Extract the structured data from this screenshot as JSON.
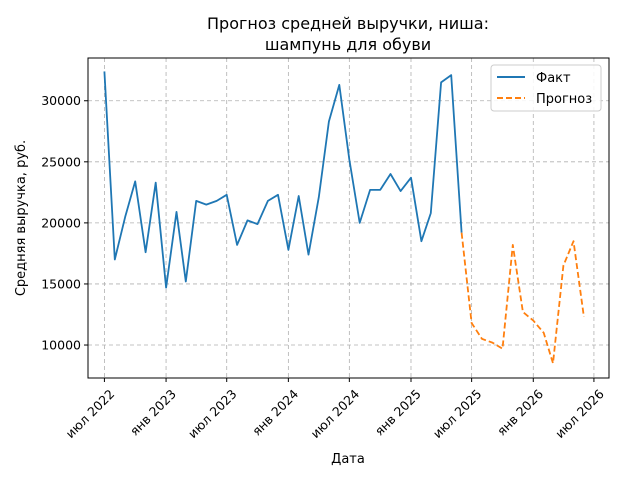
{
  "chart_data": {
    "type": "line",
    "title": [
      "Прогноз средней выручки, ниша:",
      "шампунь для обуви"
    ],
    "xlabel": "Дата",
    "ylabel": "Средняя выручка, руб.",
    "x_ticks": [
      {
        "date": "2022-07-01",
        "label": "июл 2022"
      },
      {
        "date": "2023-01-01",
        "label": "янв 2023"
      },
      {
        "date": "2023-07-01",
        "label": "июл 2023"
      },
      {
        "date": "2024-01-01",
        "label": "янв 2024"
      },
      {
        "date": "2024-07-01",
        "label": "июл 2024"
      },
      {
        "date": "2025-01-01",
        "label": "янв 2025"
      },
      {
        "date": "2025-07-01",
        "label": "июл 2025"
      },
      {
        "date": "2026-01-01",
        "label": "янв 2026"
      },
      {
        "date": "2026-07-01",
        "label": "июл 2026"
      }
    ],
    "y_ticks": [
      10000,
      15000,
      20000,
      25000,
      30000
    ],
    "xlim": [
      "2022-05-13",
      "2026-08-15"
    ],
    "ylim": [
      7300,
      33500
    ],
    "grid": true,
    "legend_position": "top-right",
    "colors": {
      "fact": "#1f77b4",
      "forecast": "#ff7f0e"
    },
    "series": [
      {
        "name": "Факт",
        "style": "solid",
        "x": [
          "2022-07-01",
          "2022-08-01",
          "2022-09-01",
          "2022-10-01",
          "2022-11-01",
          "2022-12-01",
          "2023-01-01",
          "2023-02-01",
          "2023-03-01",
          "2023-04-01",
          "2023-05-01",
          "2023-06-01",
          "2023-07-01",
          "2023-08-01",
          "2023-09-01",
          "2023-10-01",
          "2023-11-01",
          "2023-12-01",
          "2024-01-01",
          "2024-02-01",
          "2024-03-01",
          "2024-04-01",
          "2024-05-01",
          "2024-06-01",
          "2024-07-01",
          "2024-08-01",
          "2024-09-01",
          "2024-10-01",
          "2024-11-01",
          "2024-12-01",
          "2025-01-01",
          "2025-02-01",
          "2025-03-01",
          "2025-04-01",
          "2025-05-01",
          "2025-06-01"
        ],
        "y": [
          32400,
          17000,
          20500,
          23400,
          17600,
          23300,
          14700,
          20900,
          15200,
          21800,
          21500,
          21800,
          22300,
          18200,
          20200,
          19900,
          21800,
          22300,
          17800,
          22200,
          17400,
          22100,
          28300,
          31300,
          25200,
          20000,
          22700,
          22700,
          24000,
          22600,
          23700,
          18500,
          20800,
          31500,
          32100,
          19200
        ]
      },
      {
        "name": "Прогноз",
        "style": "dashed",
        "x": [
          "2025-06-01",
          "2025-07-01",
          "2025-08-01",
          "2025-09-01",
          "2025-10-01",
          "2025-11-01",
          "2025-12-01",
          "2026-01-01",
          "2026-02-01",
          "2026-03-01",
          "2026-04-01",
          "2026-05-01",
          "2026-06-01"
        ],
        "y": [
          19200,
          11800,
          10500,
          10200,
          9700,
          18200,
          12700,
          12000,
          11000,
          8500,
          16500,
          18500,
          12300
        ]
      }
    ]
  }
}
